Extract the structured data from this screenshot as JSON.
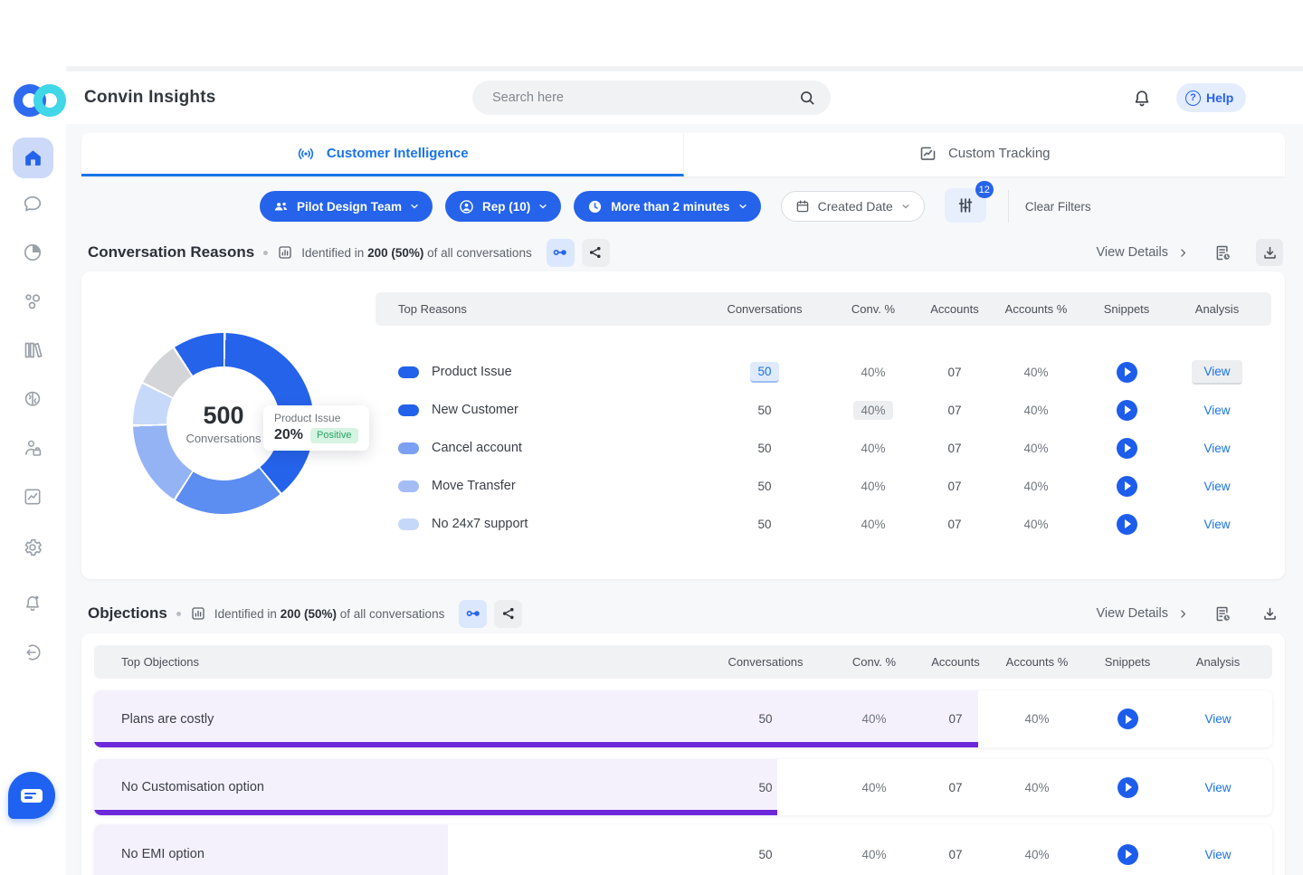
{
  "header": {
    "app_title": "Convin Insights",
    "search_placeholder": "Search here",
    "help_q": "?",
    "help_label": "Help"
  },
  "tabs": {
    "intelligence": "Customer Intelligence",
    "tracking": "Custom Tracking"
  },
  "filters": {
    "team": "Pilot Design Team",
    "rep": "Rep (10)",
    "duration": "More than 2 minutes",
    "date": "Created Date",
    "active_count": "12",
    "clear": "Clear Filters"
  },
  "reasons": {
    "title": "Conversation Reasons",
    "identified": {
      "prefix": "Identified in",
      "count": "200",
      "pct": "(50%)",
      "suffix": "of all conversations"
    },
    "view_details": "View Details",
    "table": {
      "headers": [
        "Top Reasons",
        "Conversations",
        "Conv. %",
        "Accounts",
        "Accounts %",
        "Snippets",
        "Analysis"
      ],
      "rows": [
        {
          "label": "Product Issue",
          "dot_color": "#2261e9",
          "conversations": "50",
          "conv_pct": "40%",
          "accounts": "07",
          "accounts_pct": "40%",
          "analysis": "View"
        },
        {
          "label": "New Customer",
          "dot_color": "#2261e9",
          "conversations": "50",
          "conv_pct": "40%",
          "accounts": "07",
          "accounts_pct": "40%",
          "analysis": "View"
        },
        {
          "label": "Cancel account",
          "dot_color": "#7ba0f1",
          "conversations": "50",
          "conv_pct": "40%",
          "accounts": "07",
          "accounts_pct": "40%",
          "analysis": "View"
        },
        {
          "label": "Move Transfer",
          "dot_color": "#a3bdf4",
          "conversations": "50",
          "conv_pct": "40%",
          "accounts": "07",
          "accounts_pct": "40%",
          "analysis": "View"
        },
        {
          "label": "No 24x7 support",
          "dot_color": "#c6d8f9",
          "conversations": "50",
          "conv_pct": "40%",
          "accounts": "07",
          "accounts_pct": "40%",
          "analysis": "View"
        }
      ]
    }
  },
  "objections": {
    "title": "Objections",
    "identified": {
      "prefix": "Identified in",
      "count": "200",
      "pct": "(50%)",
      "suffix": "of all conversations"
    },
    "view_details": "View Details",
    "table": {
      "headers": [
        "Top Objections",
        "Conversations",
        "Conv. %",
        "Accounts",
        "Accounts %",
        "Snippets",
        "Analysis"
      ],
      "rows": [
        {
          "label": "Plans are costly",
          "fill_pct": 75,
          "conversations": "50",
          "conv_pct": "40%",
          "accounts": "07",
          "accounts_pct": "40%",
          "analysis": "View"
        },
        {
          "label": "No Customisation option",
          "fill_pct": 58,
          "conversations": "50",
          "conv_pct": "40%",
          "accounts": "07",
          "accounts_pct": "40%",
          "analysis": "View"
        },
        {
          "label": "No EMI option",
          "fill_pct": 30,
          "conversations": "50",
          "conv_pct": "40%",
          "accounts": "07",
          "accounts_pct": "40%",
          "analysis": "View"
        }
      ]
    }
  },
  "chart_data": {
    "type": "pie",
    "title": "Conversation Reasons distribution (donut)",
    "center": {
      "value": "500",
      "label": "Conversations"
    },
    "legend_position": "none",
    "segments": [
      {
        "label": "Product Issue",
        "color": "#2563eb",
        "start_deg": 0,
        "end_deg": 140,
        "pct": 38.9
      },
      {
        "label": "Cancel account",
        "color": "#5c8df0",
        "start_deg": 140,
        "end_deg": 212,
        "pct": 20.0
      },
      {
        "label": "Move Transfer",
        "color": "#94b3f4",
        "start_deg": 212,
        "end_deg": 268,
        "pct": 15.6
      },
      {
        "label": "No 24x7 support",
        "color": "#c7d9f9",
        "start_deg": 268,
        "end_deg": 296,
        "pct": 7.8
      },
      {
        "label": "Other",
        "color": "#d3d5d9",
        "start_deg": 296,
        "end_deg": 326,
        "pct": 8.3
      },
      {
        "label": "New Customer",
        "color": "#2563eb",
        "start_deg": 326,
        "end_deg": 360,
        "pct": 9.4
      }
    ],
    "tooltip": {
      "label": "Product Issue",
      "value": "20%",
      "sentiment": "Positive"
    }
  },
  "colors": {
    "primary_blue": "#2563eb",
    "link_blue": "#1a73e8",
    "purple_bar": "#6d28d9",
    "lavender_fill": "#f5f1fc",
    "positive_bg": "#d6f4e1",
    "positive_text": "#27a567",
    "table_header_bg": "#f1f2f4",
    "page_bg": "#f7f8fa"
  }
}
